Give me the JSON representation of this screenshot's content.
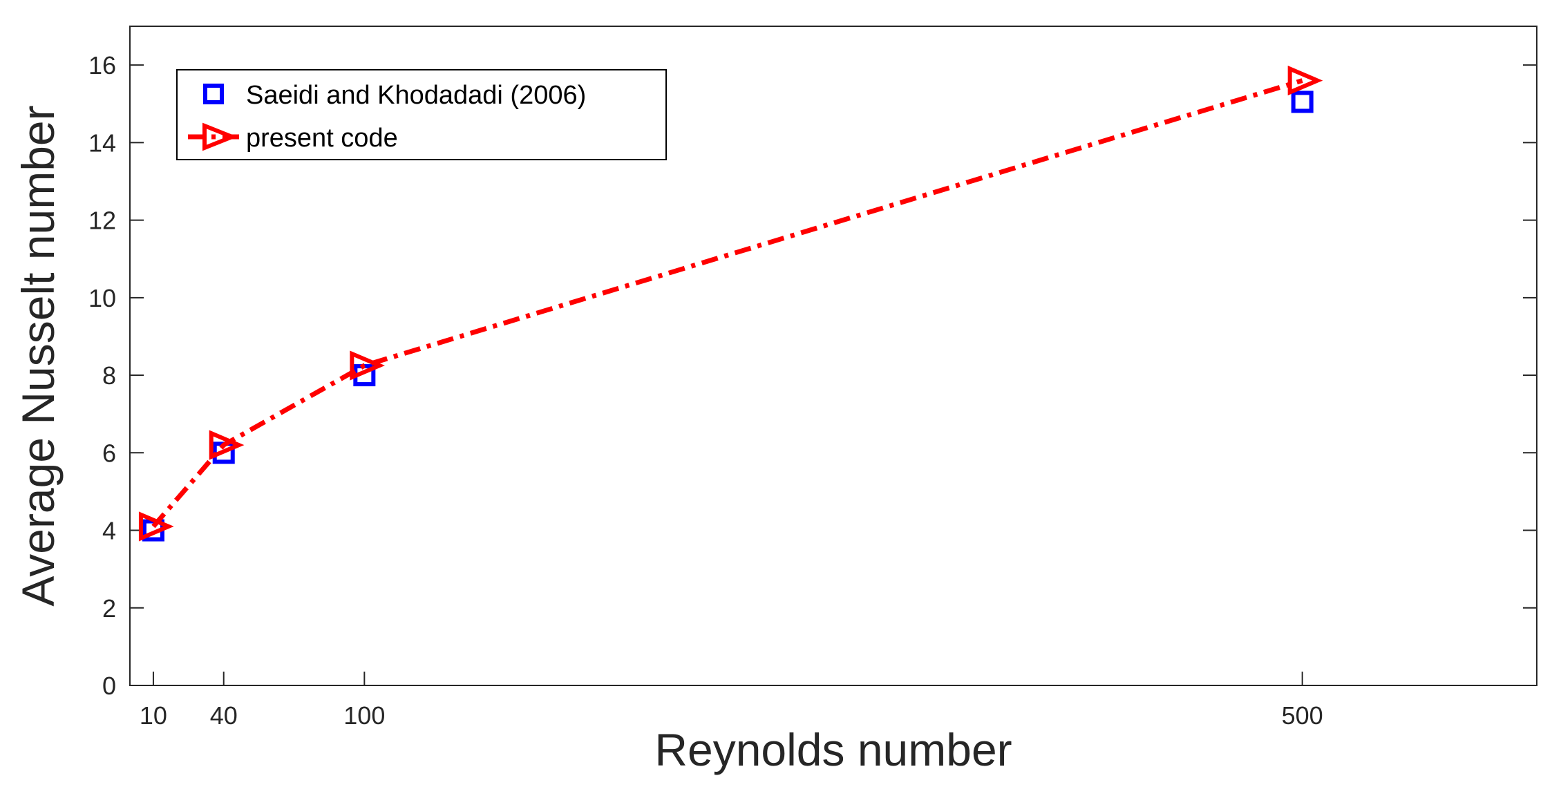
{
  "chart_data": {
    "type": "line",
    "xlabel": "Reynolds number",
    "ylabel": "Average Nusselt number",
    "xlim": [
      0,
      600
    ],
    "ylim": [
      0,
      17
    ],
    "xticks": [
      10,
      40,
      100,
      500
    ],
    "yticks": [
      0,
      2,
      4,
      6,
      8,
      10,
      12,
      14,
      16
    ],
    "grid": false,
    "legend_position": "top-left",
    "series": [
      {
        "name": "Saeidi and Khodadadi (2006)",
        "style": "markers",
        "marker": "square",
        "color": "#0000ff",
        "x": [
          10,
          40,
          100,
          500
        ],
        "y": [
          4.0,
          6.0,
          8.0,
          15.05
        ]
      },
      {
        "name": "present code",
        "style": "dash-dot line with markers",
        "marker": "triangle-right",
        "color": "#ff0000",
        "x": [
          10,
          40,
          100,
          500
        ],
        "y": [
          4.1,
          6.2,
          8.25,
          15.6
        ]
      }
    ]
  }
}
